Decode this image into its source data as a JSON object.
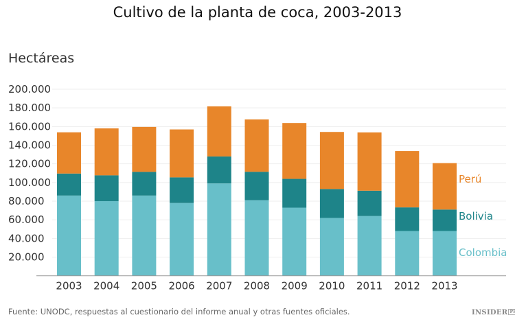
{
  "chart_data": {
    "type": "bar",
    "stacked": true,
    "title": "Cultivo de la planta de coca, 2003-2013",
    "ylabel": "Hectáreas",
    "xlabel": "",
    "ylim": [
      0,
      200000
    ],
    "yticks": [
      "20.000",
      "40.000",
      "60.000",
      "80.000",
      "100.000",
      "120.000",
      "140.000",
      "160.000",
      "180.000",
      "200.000"
    ],
    "ytick_values": [
      20000,
      40000,
      60000,
      80000,
      100000,
      120000,
      140000,
      160000,
      180000,
      200000
    ],
    "grid": true,
    "legend": "right, inline labels",
    "categories": [
      "2003",
      "2004",
      "2005",
      "2006",
      "2007",
      "2008",
      "2009",
      "2010",
      "2011",
      "2012",
      "2013"
    ],
    "series": [
      {
        "name": "Colombia",
        "color": "#68bfc9",
        "values": [
          86000,
          80000,
          86000,
          78000,
          99000,
          81000,
          73000,
          62000,
          64000,
          48000,
          48000
        ]
      },
      {
        "name": "Bolivia",
        "color": "#1e8489",
        "values": [
          23600,
          27700,
          25400,
          27500,
          28900,
          30500,
          30900,
          31000,
          27200,
          25300,
          23000
        ]
      },
      {
        "name": "Perú",
        "color": "#e8862a",
        "values": [
          44200,
          50300,
          48200,
          51400,
          53700,
          56100,
          59900,
          61200,
          62500,
          60400,
          49800
        ]
      }
    ]
  },
  "footer": {
    "source": "Fuente: UNODC, respuestas al cuestionario del informe anual y otras fuentes oficiales.",
    "logo": "INSIDER PRO"
  }
}
